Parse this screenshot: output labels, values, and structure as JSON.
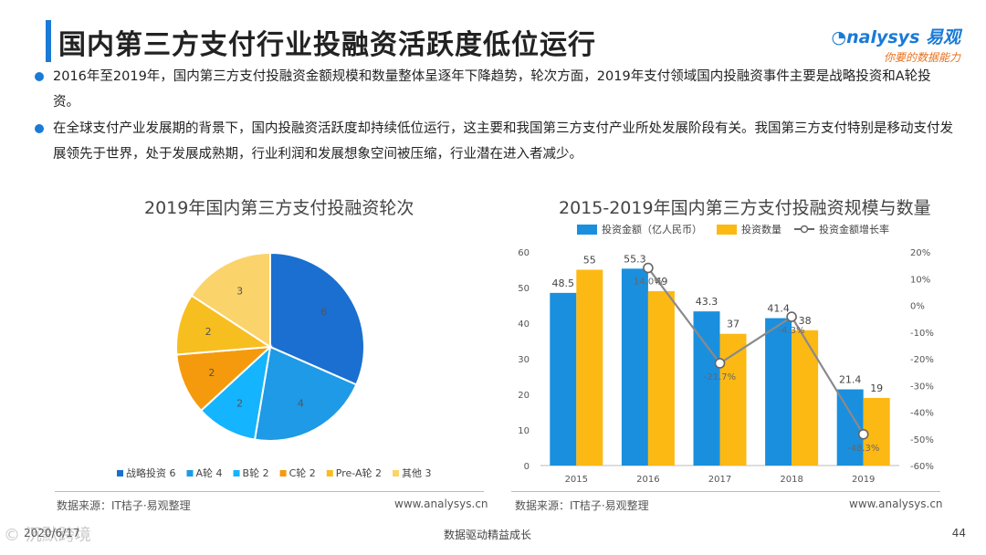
{
  "page": {
    "title": "国内第三方支付行业投融资活跃度低位运行",
    "logo_main": "nalysys 易观",
    "logo_sub": "你要的数据能力",
    "bullets": [
      "2016年至2019年，国内第三方支付投融资金额规模和数量整体呈逐年下降趋势，轮次方面，2019年支付领域国内投融资事件主要是战略投资和A轮投资。",
      "在全球支付产业发展期的背景下，国内投融资活跃度却持续低位运行，这主要和我国第三方支付产业所处发展阶段有关。我国第三方支付特别是移动支付发展领先于世界，处于发展成熟期，行业利润和发展想象空间被压缩，行业潜在进入者减少。"
    ],
    "pie_source": "数据来源：IT桔子·易观整理",
    "pie_url": "www.analysys.cn",
    "bar_source": "数据来源：IT桔子·易观整理",
    "bar_url": "www.analysys.cn",
    "footer_date": "2020/6/17",
    "footer_mid": "数据驱动精益成长",
    "footer_page": "44",
    "bottom_watermark": "© 沉默跨境",
    "watermark": "nalysys 易观 你要的数据能力"
  },
  "chart_data": [
    {
      "type": "pie",
      "title": "2019年国内第三方支付投融资轮次",
      "labels": [
        "战略投资",
        "A轮",
        "B轮",
        "C轮",
        "Pre-A轮",
        "其他"
      ],
      "values": [
        6,
        4,
        2,
        2,
        2,
        3
      ],
      "colors": [
        "#1a6fd0",
        "#1e9ae6",
        "#14b4ff",
        "#f59a0c",
        "#f7be1f",
        "#fad36b"
      ],
      "legend_position": "bottom"
    },
    {
      "type": "bar",
      "title": "2015-2019年国内第三方支付投融资规模与数量",
      "categories": [
        "2015",
        "2016",
        "2017",
        "2018",
        "2019"
      ],
      "series": [
        {
          "name": "投资金额（亿人民币）",
          "type": "bar",
          "values": [
            48.5,
            55.3,
            43.3,
            41.4,
            21.4
          ],
          "color": "#1a8fde"
        },
        {
          "name": "投资数量",
          "type": "bar",
          "values": [
            55,
            49,
            37,
            38,
            19
          ],
          "color": "#fdb913"
        },
        {
          "name": "投资金额增长率",
          "type": "line",
          "axis": "right",
          "values": [
            null,
            14.0,
            -21.7,
            -4.3,
            -48.3
          ],
          "labels": [
            "",
            "14.0%",
            "-21.7%",
            "-4.3%",
            "-48.3%"
          ],
          "color": "#8a8a8a"
        }
      ],
      "ylim": [
        0,
        60
      ],
      "yticks": [
        0,
        10,
        20,
        30,
        40,
        50,
        60
      ],
      "y2lim": [
        -60,
        20
      ],
      "y2ticks": [
        "20%",
        "10%",
        "0%",
        "-10%",
        "-20%",
        "-30%",
        "-40%",
        "-50%",
        "-60%"
      ],
      "legend_position": "top"
    }
  ]
}
